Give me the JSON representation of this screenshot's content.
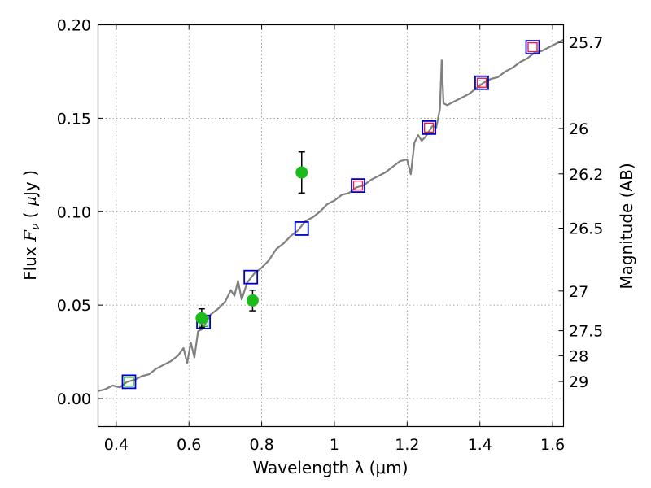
{
  "chart_data": {
    "type": "scatter",
    "xlabel": "Wavelength  λ (μm)",
    "ylabel": "Flux  F_ν  ( μJy )",
    "ylabel_right": "Magnitude (AB)",
    "xlim": [
      0.35,
      1.63
    ],
    "ylim": [
      -0.015,
      0.2
    ],
    "grid": true,
    "x_ticks": [
      {
        "value": 0.4,
        "label": "0.4"
      },
      {
        "value": 0.6,
        "label": "0.6"
      },
      {
        "value": 0.8,
        "label": "0.8"
      },
      {
        "value": 1.0,
        "label": "1"
      },
      {
        "value": 1.2,
        "label": "1.2"
      },
      {
        "value": 1.4,
        "label": "1.4"
      },
      {
        "value": 1.6,
        "label": "1.6"
      }
    ],
    "y_ticks": [
      {
        "value": 0.0,
        "label": "0.00"
      },
      {
        "value": 0.05,
        "label": "0.05"
      },
      {
        "value": 0.1,
        "label": "0.10"
      },
      {
        "value": 0.15,
        "label": "0.15"
      },
      {
        "value": 0.2,
        "label": "0.20"
      }
    ],
    "right_ticks": [
      {
        "mag": 25.7,
        "label": "25.7"
      },
      {
        "mag": 26.0,
        "label": "26"
      },
      {
        "mag": 26.2,
        "label": "26.2"
      },
      {
        "mag": 26.5,
        "label": "26.5"
      },
      {
        "mag": 27.0,
        "label": "27"
      },
      {
        "mag": 27.5,
        "label": "27.5"
      },
      {
        "mag": 28.0,
        "label": "28"
      },
      {
        "mag": 29.0,
        "label": "29"
      }
    ],
    "colors": {
      "sed": "#808080",
      "observed": "#1bbb1b",
      "errorbar": "#000000",
      "model_blue": "#0000cc",
      "model_red": "#dd2244",
      "model_green": "#22aa22",
      "grid": "#888888"
    },
    "series": [
      {
        "style": "line",
        "x": [
          0.35,
          0.37,
          0.39,
          0.41,
          0.43,
          0.45,
          0.47,
          0.49,
          0.51,
          0.53,
          0.55,
          0.57,
          0.585,
          0.595,
          0.605,
          0.615,
          0.625,
          0.635,
          0.645,
          0.66,
          0.68,
          0.7,
          0.715,
          0.725,
          0.735,
          0.745,
          0.76,
          0.78,
          0.8,
          0.82,
          0.84,
          0.86,
          0.88,
          0.9,
          0.92,
          0.94,
          0.96,
          0.98,
          1.0,
          1.02,
          1.04,
          1.06,
          1.08,
          1.1,
          1.12,
          1.14,
          1.16,
          1.18,
          1.2,
          1.21,
          1.22,
          1.23,
          1.24,
          1.25,
          1.26,
          1.27,
          1.28,
          1.29,
          1.295,
          1.3,
          1.31,
          1.33,
          1.35,
          1.37,
          1.39,
          1.41,
          1.43,
          1.45,
          1.47,
          1.49,
          1.51,
          1.53,
          1.55,
          1.57,
          1.59,
          1.61,
          1.63
        ],
        "y": [
          0.004,
          0.005,
          0.007,
          0.006,
          0.009,
          0.01,
          0.012,
          0.013,
          0.016,
          0.018,
          0.02,
          0.023,
          0.027,
          0.019,
          0.03,
          0.022,
          0.036,
          0.037,
          0.04,
          0.045,
          0.048,
          0.052,
          0.058,
          0.055,
          0.063,
          0.053,
          0.062,
          0.067,
          0.07,
          0.074,
          0.08,
          0.083,
          0.087,
          0.09,
          0.095,
          0.097,
          0.1,
          0.104,
          0.106,
          0.109,
          0.11,
          0.113,
          0.114,
          0.117,
          0.119,
          0.121,
          0.124,
          0.127,
          0.128,
          0.12,
          0.137,
          0.141,
          0.138,
          0.14,
          0.143,
          0.146,
          0.145,
          0.155,
          0.181,
          0.158,
          0.157,
          0.159,
          0.161,
          0.163,
          0.166,
          0.169,
          0.171,
          0.172,
          0.175,
          0.177,
          0.18,
          0.182,
          0.185,
          0.186,
          0.188,
          0.19,
          0.192
        ]
      },
      {
        "style": "errorbar",
        "x": [
          0.635,
          0.775,
          0.91
        ],
        "y": [
          0.043,
          0.0525,
          0.121
        ],
        "yerr": [
          0.005,
          0.0055,
          0.011
        ]
      },
      {
        "style": "square-open",
        "x": [
          0.435,
          0.64,
          0.77,
          0.91,
          1.065,
          1.26,
          1.405,
          1.545
        ],
        "y": [
          0.009,
          0.041,
          0.065,
          0.091,
          0.114,
          0.145,
          0.169,
          0.188
        ]
      },
      {
        "style": "square-small",
        "x": [
          0.435,
          0.64,
          1.065,
          1.26,
          1.405,
          1.545
        ],
        "y": [
          0.009,
          0.041,
          0.114,
          0.145,
          0.169,
          0.188
        ]
      }
    ]
  }
}
